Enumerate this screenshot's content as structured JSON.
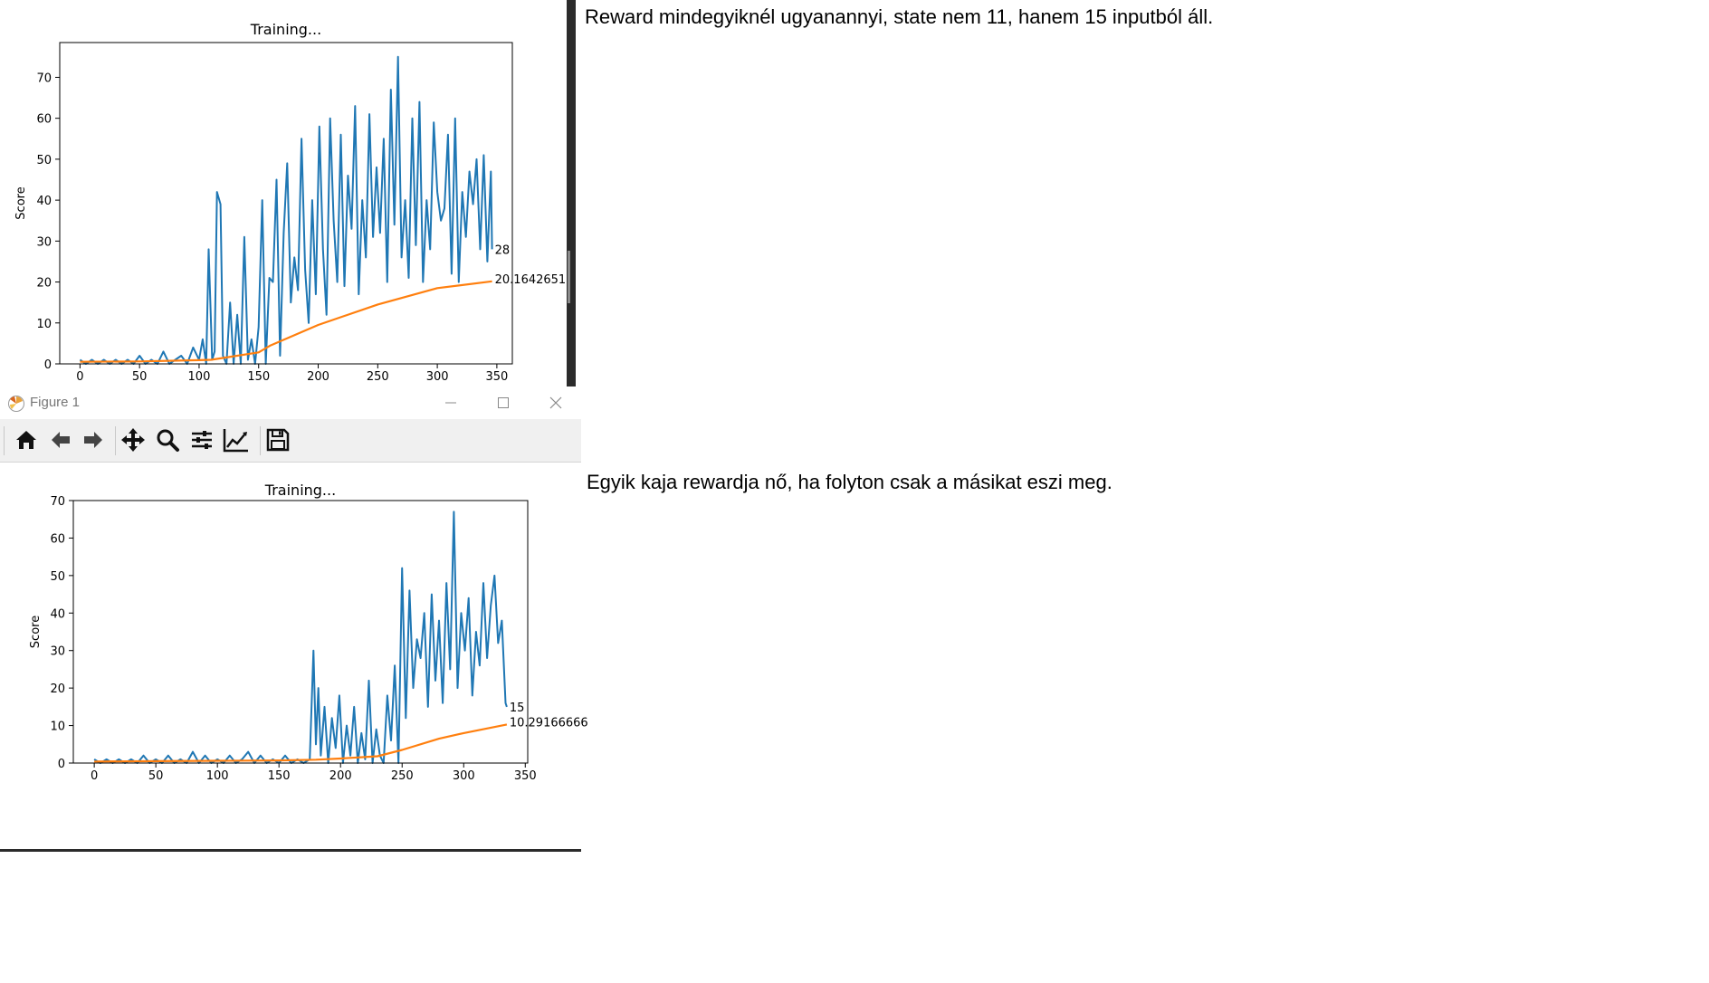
{
  "notes": {
    "first": "Reward mindegyiknél ugyanannyi, state nem 11, hanem 15 inputból áll.",
    "second": "Egyik kaja rewardja nő, ha folyton csak a másikat eszi meg."
  },
  "window": {
    "title": "Figure 1",
    "icon": "matplotlib-icon",
    "controls": [
      "minimize-icon",
      "maximize-icon",
      "close-icon"
    ],
    "toolbar": [
      "home-icon",
      "back-arrow-icon",
      "forward-arrow-icon",
      "pan-icon",
      "zoom-icon",
      "configure-subplots-icon",
      "edit-axis-icon",
      "save-icon"
    ]
  },
  "chart_data": [
    {
      "type": "line",
      "title": "Training...",
      "xlabel": "",
      "ylabel": "Score",
      "xlim": [
        -17,
        363
      ],
      "ylim": [
        0,
        78.5
      ],
      "x_ticks": [
        0,
        50,
        100,
        150,
        200,
        250,
        300,
        350
      ],
      "y_ticks": [
        0,
        10,
        20,
        30,
        40,
        50,
        60,
        70
      ],
      "grid": false,
      "colors": {
        "scores": "#1f77b4",
        "mean": "#ff7f0e"
      },
      "annotations": [
        "28",
        "20.16426512"
      ],
      "episodes": 347,
      "series": [
        {
          "role": "scores",
          "x": [
            0,
            5,
            10,
            15,
            20,
            25,
            30,
            35,
            40,
            45,
            50,
            55,
            60,
            65,
            70,
            75,
            80,
            85,
            90,
            95,
            100,
            103,
            106,
            108,
            111,
            113,
            115,
            118,
            120,
            123,
            126,
            129,
            132,
            135,
            138,
            141,
            144,
            147,
            150,
            153,
            156,
            159,
            162,
            165,
            168,
            171,
            174,
            177,
            180,
            183,
            186,
            189,
            192,
            195,
            198,
            201,
            204,
            207,
            210,
            213,
            216,
            219,
            222,
            225,
            228,
            231,
            234,
            237,
            240,
            243,
            246,
            249,
            252,
            255,
            258,
            261,
            264,
            267,
            270,
            273,
            276,
            279,
            282,
            285,
            288,
            291,
            294,
            297,
            300,
            303,
            306,
            309,
            312,
            315,
            318,
            321,
            324,
            327,
            330,
            333,
            336,
            339,
            342,
            345,
            346
          ],
          "values": [
            1,
            0,
            1,
            0,
            1,
            0,
            1,
            0,
            1,
            0,
            2,
            0,
            1,
            0,
            3,
            0,
            1,
            2,
            0,
            4,
            1,
            6,
            0,
            28,
            1,
            3,
            42,
            39,
            2,
            0,
            15,
            0,
            12,
            0,
            31,
            1,
            6,
            0,
            9,
            40,
            0,
            21,
            20,
            45,
            2,
            32,
            49,
            15,
            26,
            18,
            55,
            23,
            10,
            40,
            17,
            58,
            28,
            12,
            60,
            35,
            20,
            56,
            19,
            46,
            33,
            63,
            17,
            40,
            26,
            61,
            31,
            48,
            32,
            55,
            20,
            67,
            34,
            75,
            26,
            40,
            21,
            60,
            29,
            64,
            20,
            40,
            28,
            59,
            42,
            35,
            38,
            56,
            22,
            60,
            20,
            42,
            31,
            47,
            39,
            50,
            28,
            51,
            25,
            47,
            28
          ]
        },
        {
          "role": "mean",
          "x": [
            0,
            50,
            100,
            110,
            150,
            160,
            200,
            250,
            300,
            346
          ],
          "values": [
            0.5,
            0.6,
            0.9,
            1.0,
            2.8,
            4.5,
            9.5,
            14.5,
            18.5,
            20.16
          ]
        }
      ]
    },
    {
      "type": "line",
      "title": "Training...",
      "xlabel": "",
      "ylabel": "Score",
      "xlim": [
        -17,
        352
      ],
      "ylim": [
        0,
        70
      ],
      "x_ticks": [
        0,
        50,
        100,
        150,
        200,
        250,
        300,
        350
      ],
      "y_ticks": [
        0,
        10,
        20,
        30,
        40,
        50,
        60,
        70
      ],
      "grid": false,
      "colors": {
        "scores": "#1f77b4",
        "mean": "#ff7f0e"
      },
      "annotations": [
        "15",
        "10.29166666"
      ],
      "episodes": 335,
      "series": [
        {
          "role": "scores",
          "x": [
            0,
            5,
            10,
            15,
            20,
            25,
            30,
            35,
            40,
            45,
            50,
            55,
            60,
            65,
            70,
            75,
            80,
            85,
            90,
            95,
            100,
            105,
            110,
            115,
            120,
            125,
            130,
            135,
            140,
            145,
            150,
            155,
            160,
            165,
            170,
            175,
            178,
            180,
            182,
            184,
            187,
            190,
            193,
            196,
            199,
            202,
            205,
            208,
            211,
            214,
            217,
            220,
            223,
            226,
            229,
            232,
            235,
            238,
            241,
            244,
            247,
            250,
            253,
            256,
            259,
            262,
            265,
            268,
            271,
            274,
            277,
            280,
            283,
            286,
            289,
            292,
            295,
            298,
            301,
            304,
            307,
            310,
            313,
            316,
            319,
            322,
            325,
            328,
            331,
            334,
            335
          ],
          "values": [
            1,
            0,
            1,
            0,
            1,
            0,
            1,
            0,
            2,
            0,
            1,
            0,
            2,
            0,
            1,
            0,
            3,
            0,
            2,
            0,
            1,
            0,
            2,
            0,
            1,
            3,
            0,
            2,
            0,
            1,
            0,
            2,
            0,
            1,
            0,
            1,
            30,
            5,
            20,
            2,
            15,
            0,
            12,
            4,
            18,
            0,
            10,
            2,
            15,
            0,
            8,
            1,
            22,
            0,
            9,
            2,
            0,
            18,
            6,
            26,
            0,
            52,
            12,
            46,
            20,
            33,
            28,
            40,
            15,
            45,
            22,
            38,
            16,
            48,
            25,
            67,
            20,
            40,
            30,
            44,
            18,
            35,
            26,
            48,
            28,
            42,
            50,
            32,
            38,
            16,
            15
          ]
        },
        {
          "role": "mean",
          "x": [
            0,
            50,
            100,
            150,
            180,
            200,
            230,
            250,
            280,
            300,
            335
          ],
          "values": [
            0.4,
            0.5,
            0.6,
            0.7,
            0.9,
            1.2,
            1.8,
            3.5,
            6.5,
            8.0,
            10.29
          ]
        }
      ]
    }
  ]
}
